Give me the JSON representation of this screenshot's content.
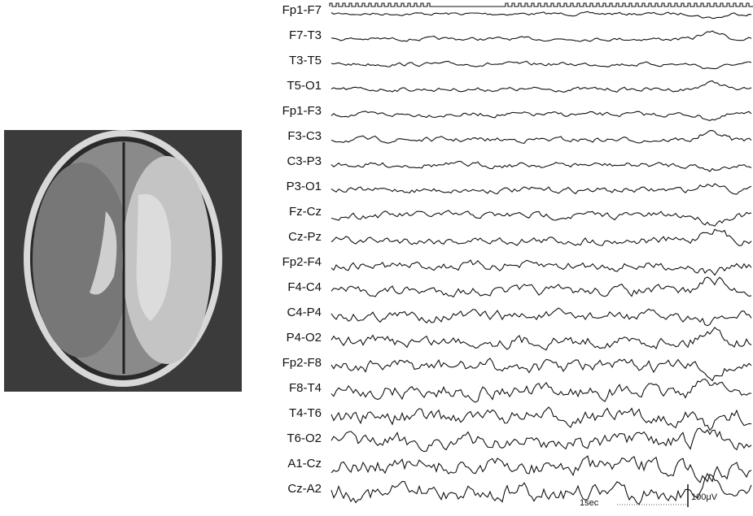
{
  "channels": [
    "Fp1-F7",
    "F7-T3",
    "T3-T5",
    "T5-O1",
    "Fp1-F3",
    "F3-C3",
    "C3-P3",
    "P3-O1",
    "Fz-Cz",
    "Cz-Pz",
    "Fp2-F4",
    "F4-C4",
    "C4-P4",
    "P4-O2",
    "Fp2-F8",
    "F8-T4",
    "T4-T6",
    "T6-O2",
    "A1-Cz",
    "Cz-A2"
  ],
  "scale": {
    "time": "1sec",
    "amplitude": "100μV"
  }
}
